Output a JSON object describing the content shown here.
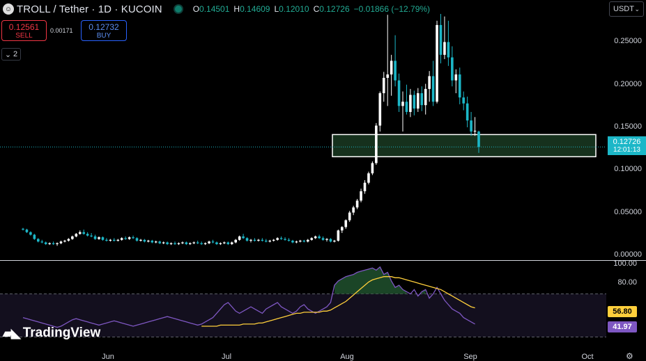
{
  "header": {
    "symbol_icon": "troll-coin-icon",
    "title": "TROLL / Tether · 1D · KUCOIN",
    "ohlc": {
      "o_label": "O",
      "o": "0.14501",
      "h_label": "H",
      "h": "0.14609",
      "l_label": "L",
      "l": "0.12010",
      "c_label": "C",
      "c": "0.12726",
      "change": "−0.01866 (−12.79%)"
    }
  },
  "trade": {
    "sell_price": "0.12561",
    "sell_label": "SELL",
    "spread": "0.00171",
    "buy_price": "0.12732",
    "buy_label": "BUY"
  },
  "indicators_toggle": {
    "count": "2"
  },
  "currency_select": "USDT",
  "last_price": {
    "price": "0.12726",
    "countdown": "12:01:13"
  },
  "rsi": {
    "ma_value": "56.80",
    "value": "41.97"
  },
  "brand": "TradingView",
  "chart_data": [
    {
      "type": "candlestick",
      "y_ticks": [
        "0.25000",
        "0.20000",
        "0.15000",
        "0.10000",
        "0.05000",
        "0.00000"
      ],
      "y_tick_values": [
        0.25,
        0.2,
        0.15,
        0.1,
        0.05,
        0.0
      ],
      "ylim": [
        -0.005,
        0.283
      ],
      "x_ticks": [
        "Jun",
        "Jul",
        "Aug",
        "Sep",
        "Oct"
      ],
      "colors": {
        "up": "#ffffff",
        "down": "#1cb7c8"
      },
      "zone": {
        "top": 0.1415,
        "bottom": 0.1155,
        "color": "#1a3a22"
      },
      "candles": [
        [
          0.031,
          0.032,
          0.029,
          0.03
        ],
        [
          0.03,
          0.031,
          0.026,
          0.027
        ],
        [
          0.027,
          0.028,
          0.023,
          0.024
        ],
        [
          0.024,
          0.025,
          0.018,
          0.019
        ],
        [
          0.019,
          0.02,
          0.015,
          0.016
        ],
        [
          0.016,
          0.018,
          0.014,
          0.015
        ],
        [
          0.015,
          0.016,
          0.012,
          0.013
        ],
        [
          0.013,
          0.015,
          0.012,
          0.014
        ],
        [
          0.014,
          0.016,
          0.012,
          0.013
        ],
        [
          0.013,
          0.015,
          0.011,
          0.014
        ],
        [
          0.014,
          0.017,
          0.013,
          0.016
        ],
        [
          0.016,
          0.018,
          0.015,
          0.017
        ],
        [
          0.017,
          0.02,
          0.016,
          0.019
        ],
        [
          0.019,
          0.023,
          0.018,
          0.022
        ],
        [
          0.022,
          0.026,
          0.021,
          0.025
        ],
        [
          0.025,
          0.029,
          0.024,
          0.027
        ],
        [
          0.027,
          0.03,
          0.024,
          0.025
        ],
        [
          0.025,
          0.027,
          0.022,
          0.023
        ],
        [
          0.023,
          0.026,
          0.021,
          0.022
        ],
        [
          0.022,
          0.024,
          0.018,
          0.019
        ],
        [
          0.019,
          0.022,
          0.018,
          0.021
        ],
        [
          0.021,
          0.022,
          0.017,
          0.018
        ],
        [
          0.018,
          0.02,
          0.016,
          0.017
        ],
        [
          0.017,
          0.019,
          0.016,
          0.018
        ],
        [
          0.018,
          0.02,
          0.016,
          0.017
        ],
        [
          0.017,
          0.019,
          0.016,
          0.018
        ],
        [
          0.018,
          0.021,
          0.017,
          0.02
        ],
        [
          0.02,
          0.022,
          0.018,
          0.019
        ],
        [
          0.019,
          0.022,
          0.018,
          0.021
        ],
        [
          0.021,
          0.023,
          0.019,
          0.02
        ],
        [
          0.02,
          0.021,
          0.016,
          0.017
        ],
        [
          0.017,
          0.019,
          0.016,
          0.018
        ],
        [
          0.018,
          0.019,
          0.015,
          0.016
        ],
        [
          0.016,
          0.018,
          0.015,
          0.017
        ],
        [
          0.017,
          0.018,
          0.014,
          0.015
        ],
        [
          0.015,
          0.017,
          0.014,
          0.016
        ],
        [
          0.016,
          0.017,
          0.013,
          0.014
        ],
        [
          0.014,
          0.016,
          0.013,
          0.015
        ],
        [
          0.015,
          0.016,
          0.012,
          0.013
        ],
        [
          0.013,
          0.015,
          0.012,
          0.014
        ],
        [
          0.014,
          0.016,
          0.012,
          0.013
        ],
        [
          0.013,
          0.015,
          0.012,
          0.014
        ],
        [
          0.014,
          0.016,
          0.013,
          0.015
        ],
        [
          0.015,
          0.016,
          0.012,
          0.013
        ],
        [
          0.013,
          0.015,
          0.012,
          0.014
        ],
        [
          0.014,
          0.016,
          0.013,
          0.015
        ],
        [
          0.015,
          0.017,
          0.013,
          0.014
        ],
        [
          0.014,
          0.016,
          0.012,
          0.013
        ],
        [
          0.013,
          0.015,
          0.012,
          0.014
        ],
        [
          0.014,
          0.017,
          0.013,
          0.016
        ],
        [
          0.016,
          0.018,
          0.014,
          0.015
        ],
        [
          0.015,
          0.016,
          0.012,
          0.013
        ],
        [
          0.013,
          0.015,
          0.012,
          0.014
        ],
        [
          0.014,
          0.016,
          0.013,
          0.015
        ],
        [
          0.015,
          0.016,
          0.012,
          0.013
        ],
        [
          0.013,
          0.016,
          0.012,
          0.015
        ],
        [
          0.015,
          0.019,
          0.014,
          0.018
        ],
        [
          0.018,
          0.023,
          0.017,
          0.022
        ],
        [
          0.022,
          0.025,
          0.019,
          0.02
        ],
        [
          0.02,
          0.021,
          0.016,
          0.017
        ],
        [
          0.017,
          0.019,
          0.015,
          0.018
        ],
        [
          0.018,
          0.02,
          0.016,
          0.017
        ],
        [
          0.017,
          0.019,
          0.016,
          0.018
        ],
        [
          0.018,
          0.02,
          0.016,
          0.017
        ],
        [
          0.017,
          0.019,
          0.015,
          0.016
        ],
        [
          0.016,
          0.018,
          0.015,
          0.017
        ],
        [
          0.017,
          0.019,
          0.016,
          0.018
        ],
        [
          0.018,
          0.021,
          0.017,
          0.02
        ],
        [
          0.02,
          0.022,
          0.018,
          0.019
        ],
        [
          0.019,
          0.021,
          0.017,
          0.018
        ],
        [
          0.018,
          0.02,
          0.016,
          0.017
        ],
        [
          0.017,
          0.018,
          0.014,
          0.015
        ],
        [
          0.015,
          0.017,
          0.014,
          0.016
        ],
        [
          0.016,
          0.018,
          0.015,
          0.017
        ],
        [
          0.017,
          0.018,
          0.015,
          0.016
        ],
        [
          0.016,
          0.019,
          0.015,
          0.018
        ],
        [
          0.018,
          0.021,
          0.017,
          0.02
        ],
        [
          0.02,
          0.023,
          0.019,
          0.022
        ],
        [
          0.022,
          0.024,
          0.019,
          0.02
        ],
        [
          0.02,
          0.022,
          0.017,
          0.018
        ],
        [
          0.018,
          0.02,
          0.016,
          0.019
        ],
        [
          0.019,
          0.02,
          0.015,
          0.016
        ],
        [
          0.016,
          0.018,
          0.015,
          0.017
        ],
        [
          0.017,
          0.03,
          0.016,
          0.029
        ],
        [
          0.029,
          0.034,
          0.026,
          0.033
        ],
        [
          0.033,
          0.042,
          0.031,
          0.041
        ],
        [
          0.041,
          0.052,
          0.039,
          0.05
        ],
        [
          0.05,
          0.058,
          0.047,
          0.056
        ],
        [
          0.056,
          0.066,
          0.054,
          0.064
        ],
        [
          0.064,
          0.078,
          0.062,
          0.075
        ],
        [
          0.075,
          0.088,
          0.072,
          0.085
        ],
        [
          0.085,
          0.098,
          0.083,
          0.096
        ],
        [
          0.096,
          0.11,
          0.094,
          0.108
        ],
        [
          0.108,
          0.155,
          0.106,
          0.152
        ],
        [
          0.152,
          0.192,
          0.145,
          0.19
        ],
        [
          0.19,
          0.215,
          0.18,
          0.208
        ],
        [
          0.208,
          0.282,
          0.175,
          0.212
        ],
        [
          0.212,
          0.235,
          0.187,
          0.228
        ],
        [
          0.228,
          0.258,
          0.198,
          0.205
        ],
        [
          0.205,
          0.213,
          0.168,
          0.175
        ],
        [
          0.175,
          0.192,
          0.145,
          0.18
        ],
        [
          0.18,
          0.2,
          0.165,
          0.168
        ],
        [
          0.168,
          0.195,
          0.162,
          0.188
        ],
        [
          0.188,
          0.193,
          0.164,
          0.172
        ],
        [
          0.172,
          0.196,
          0.168,
          0.19
        ],
        [
          0.19,
          0.198,
          0.169,
          0.176
        ],
        [
          0.176,
          0.201,
          0.165,
          0.195
        ],
        [
          0.195,
          0.216,
          0.18,
          0.21
        ],
        [
          0.21,
          0.228,
          0.175,
          0.18
        ],
        [
          0.18,
          0.275,
          0.178,
          0.27
        ],
        [
          0.27,
          0.283,
          0.225,
          0.235
        ],
        [
          0.235,
          0.28,
          0.23,
          0.25
        ],
        [
          0.25,
          0.275,
          0.222,
          0.232
        ],
        [
          0.232,
          0.245,
          0.198,
          0.205
        ],
        [
          0.205,
          0.218,
          0.19,
          0.212
        ],
        [
          0.212,
          0.22,
          0.177,
          0.185
        ],
        [
          0.185,
          0.192,
          0.17,
          0.178
        ],
        [
          0.178,
          0.186,
          0.15,
          0.158
        ],
        [
          0.158,
          0.168,
          0.14,
          0.145
        ],
        [
          0.145,
          0.162,
          0.14,
          0.146
        ],
        [
          0.145,
          0.146,
          0.12,
          0.127
        ]
      ]
    },
    {
      "type": "line",
      "name": "rsi",
      "y_ticks": [
        "100.00",
        "80.00"
      ],
      "y_tick_values": [
        100,
        80
      ],
      "ylim": [
        20,
        100
      ],
      "bands": [
        70,
        30
      ],
      "colors": {
        "rsi": "#7e57c2",
        "ma": "#ffcf3b",
        "overbought_fill": "#1e4d2b"
      },
      "rsi_values": [
        48,
        47,
        46,
        45,
        44,
        43,
        42,
        41,
        40,
        39,
        40,
        42,
        44,
        46,
        47,
        46,
        45,
        44,
        43,
        42,
        41,
        42,
        43,
        44,
        45,
        44,
        43,
        42,
        41,
        40,
        41,
        42,
        43,
        44,
        45,
        46,
        47,
        48,
        49,
        48,
        47,
        46,
        45,
        44,
        43,
        42,
        41,
        42,
        44,
        46,
        48,
        52,
        56,
        60,
        62,
        58,
        54,
        52,
        54,
        56,
        58,
        56,
        54,
        52,
        56,
        58,
        60,
        62,
        58,
        56,
        54,
        52,
        54,
        58,
        60,
        56,
        54,
        52,
        54,
        56,
        58,
        62,
        78,
        82,
        84,
        86,
        87,
        88,
        90,
        91,
        92,
        93,
        94,
        92,
        95,
        88,
        90,
        82,
        76,
        78,
        74,
        72,
        70,
        74,
        68,
        72,
        74,
        66,
        70,
        76,
        70,
        64,
        60,
        56,
        54,
        52,
        48,
        46,
        44,
        42
      ],
      "ma_values": [
        null,
        null,
        null,
        null,
        null,
        null,
        null,
        null,
        null,
        null,
        null,
        null,
        null,
        null,
        null,
        null,
        null,
        null,
        null,
        null,
        null,
        null,
        null,
        null,
        null,
        null,
        null,
        null,
        null,
        null,
        null,
        null,
        null,
        null,
        null,
        null,
        null,
        null,
        null,
        null,
        null,
        null,
        null,
        null,
        null,
        null,
        null,
        40,
        40,
        40,
        40,
        40,
        41,
        41,
        41,
        41,
        41,
        41,
        42,
        42,
        42,
        42,
        43,
        43,
        44,
        45,
        46,
        47,
        48,
        49,
        50,
        51,
        52,
        52,
        53,
        53,
        53,
        53,
        53,
        54,
        54,
        55,
        57,
        59,
        61,
        63,
        66,
        69,
        72,
        75,
        78,
        81,
        83,
        84,
        85,
        86,
        86,
        86,
        85,
        85,
        84,
        83,
        82,
        81,
        80,
        79,
        78,
        77,
        76,
        75,
        74,
        72,
        70,
        68,
        66,
        64,
        62,
        60,
        58,
        57
      ]
    }
  ]
}
